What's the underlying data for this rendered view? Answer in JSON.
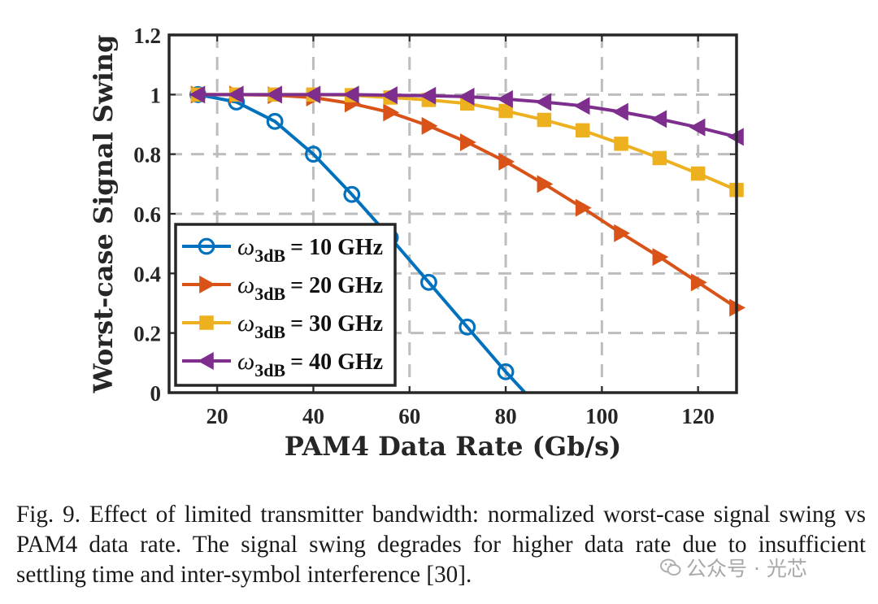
{
  "chart_data": {
    "type": "line",
    "xlabel": "PAM4 Data Rate (Gb/s)",
    "ylabel": "Worst-case Signal Swing",
    "xlim": [
      10,
      128
    ],
    "ylim": [
      0,
      1.2
    ],
    "x_ticks": [
      "20",
      "40",
      "60",
      "80",
      "100",
      "120"
    ],
    "y_ticks": [
      "0",
      "0.2",
      "0.4",
      "0.6",
      "0.8",
      "1",
      "1.2"
    ],
    "grid": true,
    "legend_placement": "bottom-left",
    "series": [
      {
        "name": "ω3dB = 10 GHz",
        "legend_symbol": "ω",
        "legend_sub": "3dB",
        "legend_value": "= 10 GHz",
        "color": "#0072BD",
        "marker": "circle",
        "x": [
          16,
          24,
          32,
          40,
          48,
          56,
          64,
          72,
          80,
          84
        ],
        "y": [
          1.0,
          0.975,
          0.91,
          0.8,
          0.665,
          0.52,
          0.37,
          0.22,
          0.07,
          0.0
        ],
        "marker_count": 9
      },
      {
        "name": "ω3dB = 20 GHz",
        "legend_symbol": "ω",
        "legend_sub": "3dB",
        "legend_value": "= 20 GHz",
        "color": "#D95319",
        "marker": "triangle-right",
        "x": [
          16,
          24,
          32,
          40,
          48,
          56,
          64,
          72,
          80,
          88,
          96,
          104,
          112,
          120,
          128
        ],
        "y": [
          1.0,
          1.0,
          0.998,
          0.99,
          0.97,
          0.94,
          0.895,
          0.84,
          0.775,
          0.7,
          0.62,
          0.535,
          0.455,
          0.37,
          0.285
        ]
      },
      {
        "name": "ω3dB = 30 GHz",
        "legend_symbol": "ω",
        "legend_sub": "3dB",
        "legend_value": "= 30 GHz",
        "color": "#EDB120",
        "marker": "square",
        "x": [
          16,
          24,
          32,
          40,
          48,
          56,
          64,
          72,
          80,
          88,
          96,
          104,
          112,
          120,
          128
        ],
        "y": [
          1.0,
          1.0,
          1.0,
          1.0,
          0.998,
          0.99,
          0.982,
          0.97,
          0.945,
          0.915,
          0.88,
          0.835,
          0.787,
          0.735,
          0.68
        ]
      },
      {
        "name": "ω3dB = 40 GHz",
        "legend_symbol": "ω",
        "legend_sub": "3dB",
        "legend_value": "= 40 GHz",
        "color": "#7E2F8E",
        "marker": "triangle-left",
        "x": [
          16,
          24,
          32,
          40,
          48,
          56,
          64,
          72,
          80,
          88,
          96,
          104,
          112,
          120,
          128
        ],
        "y": [
          1.0,
          1.0,
          1.0,
          1.0,
          1.0,
          0.998,
          0.996,
          0.993,
          0.985,
          0.975,
          0.962,
          0.942,
          0.918,
          0.89,
          0.858
        ]
      }
    ]
  },
  "caption": "Fig. 9.  Effect of limited transmitter bandwidth: normalized worst-case signal swing vs PAM4 data rate. The signal swing degrades for higher data rate due to insufficient settling time and inter-symbol interference [30].",
  "watermark": "公众号 · 光芯"
}
